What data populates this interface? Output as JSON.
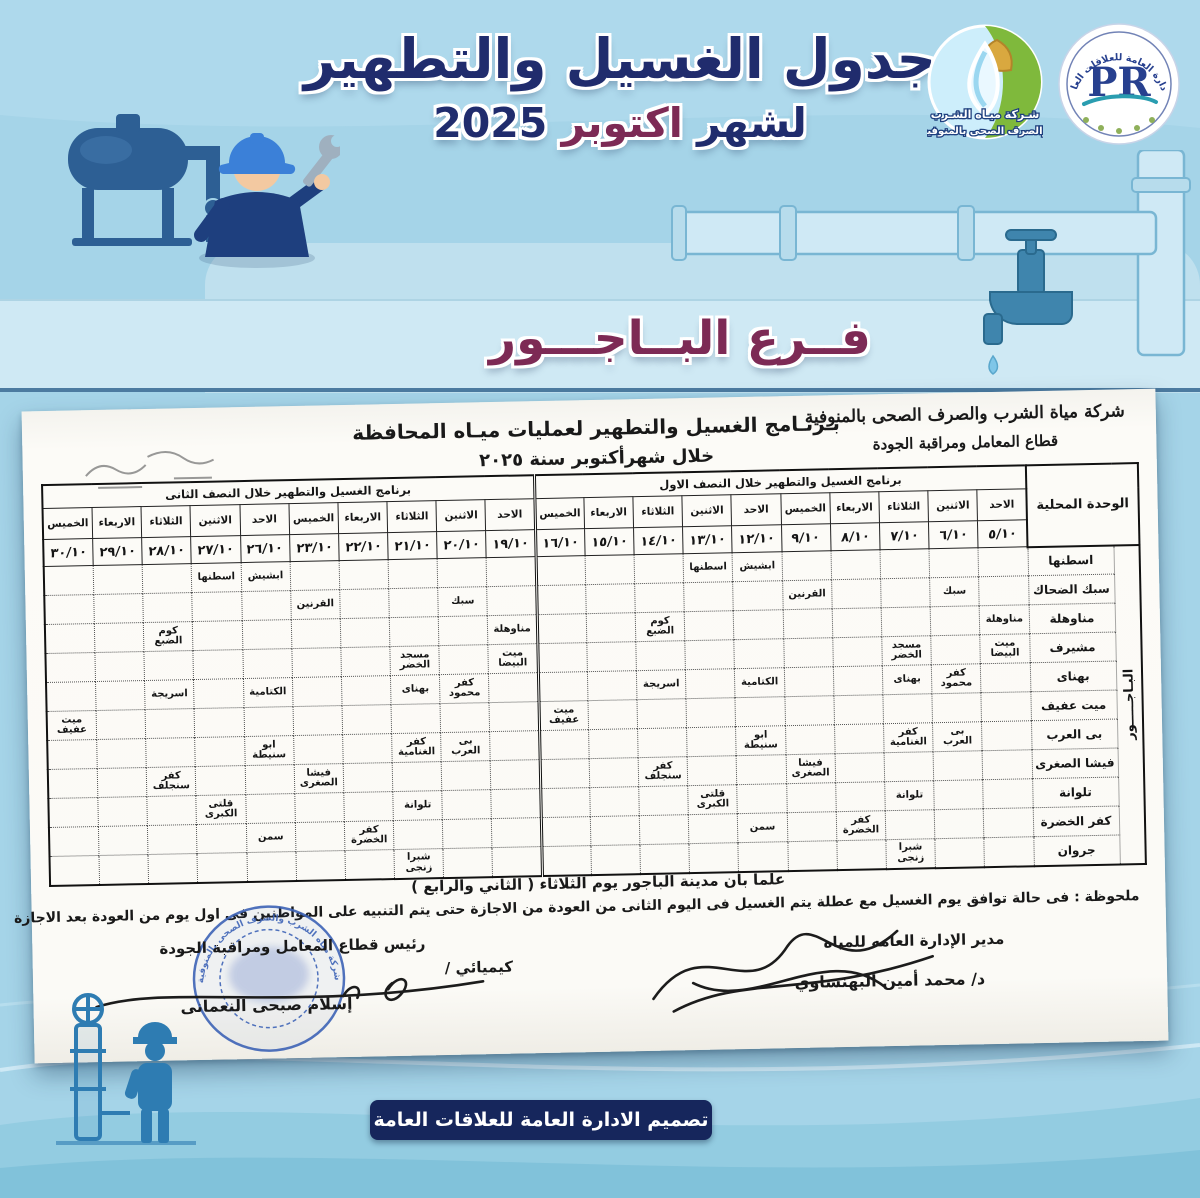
{
  "page": {
    "title_line1": "جدول الغسيل والتطهير",
    "title2_prefix": "لشهر ",
    "title2_month": "اكتوبر",
    "title2_year": " 2025",
    "branch_title": "فــرع البــاجـــور",
    "footer_banner": "تصميم الادارة العامة للعلاقات العامة"
  },
  "logos": {
    "company": {
      "line1": "شـركة ميـاه الشـرب",
      "line2": "والصرف الصحى بالمنوفية"
    },
    "pr": {
      "arc_text": "الادارة العامة للعلاقات العامة",
      "monogram": "PR"
    }
  },
  "document": {
    "company_line1": "شركة مياة الشرب والصرف الصحى بالمنوفية",
    "company_line2": "قطاع المعامل ومراقبة الجودة",
    "title_line1": "بـرنـامج الغسيل والتطهير لعمليات ميـاه المحافظة",
    "title_line2": "خلال شهرأكتوبر سنة ٢٠٢٥",
    "note_center": "علما بان مدينة الباجور يوم الثلاثاء ( الثاني والرابع )",
    "note_detail": "ملحوظة : فى حالة توافق يوم الغسيل مع عطلة يتم الغسيل فى اليوم الثانى من العودة من الاجازة حتى يتم التنبيه على المواطنين فى اول يوم من العودة بعد الاجازة",
    "sign_right_title": "مدير الإدارة العامه للمياه",
    "sign_right_name": "د/ محمد أمين البهنساوي",
    "sign_left_title": "رئيس قطاع المعامل ومراقبة الجودة",
    "sign_left_role": "كيميائي /",
    "sign_left_name": "إسلام صبحى النعمانى",
    "stamp_text": "شركة مياه الشرب والصرف الصحى بالمنوفية"
  },
  "table": {
    "unit_col_header": "الوحدة المحلية",
    "vertical_label": "البـاجـــــور",
    "half1_header": "برنامج الغسيل والتطهير خلال النصف الاول",
    "half2_header": "برنامج الغسيل والتطهير خلال النصف الثانى",
    "days": [
      "الاحد",
      "الاثنين",
      "الثلاثاء",
      "الاربعاء",
      "الخميس"
    ],
    "half1_dates": [
      "٥/١٠",
      "٦/١٠",
      "٧/١٠",
      "٨/١٠",
      "٩/١٠",
      "١٢/١٠",
      "١٣/١٠",
      "١٤/١٠",
      "١٥/١٠",
      "١٦/١٠"
    ],
    "half2_dates": [
      "١٩/١٠",
      "٢٠/١٠",
      "٢١/١٠",
      "٢٢/١٠",
      "٢٣/١٠",
      "٢٦/١٠",
      "٢٧/١٠",
      "٢٨/١٠",
      "٢٩/١٠",
      "٣٠/١٠"
    ],
    "rows": [
      {
        "unit": "اسطنها",
        "h1": [
          "",
          "",
          "",
          "",
          "",
          "ابشيش",
          "اسطنها",
          "",
          "",
          ""
        ],
        "h2": [
          "",
          "",
          "",
          "",
          "",
          "ابشيش",
          "اسطنها",
          "",
          "",
          ""
        ]
      },
      {
        "unit": "سبك الضحاك",
        "h1": [
          "",
          "سبك",
          "",
          "",
          "القرنين",
          "",
          "",
          "",
          "",
          ""
        ],
        "h2": [
          "",
          "سبك",
          "",
          "",
          "القرنين",
          "",
          "",
          "",
          "",
          ""
        ]
      },
      {
        "unit": "مناوهلة",
        "h1": [
          "مناوهلة",
          "",
          "",
          "",
          "",
          "",
          "",
          "كوم الضبع",
          "",
          ""
        ],
        "h2": [
          "مناوهلة",
          "",
          "",
          "",
          "",
          "",
          "",
          "كوم الضبع",
          "",
          ""
        ]
      },
      {
        "unit": "مشيرف",
        "h1": [
          "ميت البيضا",
          "",
          "مسجد الخضر",
          "",
          "",
          "",
          "",
          "",
          "",
          ""
        ],
        "h2": [
          "ميت البيضا",
          "",
          "مسجد الخضر",
          "",
          "",
          "",
          "",
          "",
          "",
          ""
        ]
      },
      {
        "unit": "بهناى",
        "h1": [
          "",
          "كفر محمود",
          "بهناى",
          "",
          "",
          "الكتامية",
          "",
          "اسريجة",
          "",
          ""
        ],
        "h2": [
          "",
          "كفر محمود",
          "بهناى",
          "",
          "",
          "الكتامية",
          "",
          "اسريجة",
          "",
          ""
        ]
      },
      {
        "unit": "ميت عفيف",
        "h1": [
          "",
          "",
          "",
          "",
          "",
          "",
          "",
          "",
          "",
          "ميت عفيف"
        ],
        "h2": [
          "",
          "",
          "",
          "",
          "",
          "",
          "",
          "",
          "",
          "ميت عفيف"
        ]
      },
      {
        "unit": "بى العرب",
        "h1": [
          "",
          "بى العرب",
          "كفر الغنامية",
          "",
          "",
          "ابو سنيطة",
          "",
          "",
          "",
          ""
        ],
        "h2": [
          "",
          "بى العرب",
          "كفر الغنامية",
          "",
          "",
          "ابو سنيطة",
          "",
          "",
          "",
          ""
        ]
      },
      {
        "unit": "فيشا الصغرى",
        "h1": [
          "",
          "",
          "",
          "",
          "فيشا الصغرى",
          "",
          "",
          "كفر سنجلف",
          "",
          ""
        ],
        "h2": [
          "",
          "",
          "",
          "",
          "فيشا الصغرى",
          "",
          "",
          "كفر سنجلف",
          "",
          ""
        ]
      },
      {
        "unit": "تلوانة",
        "h1": [
          "",
          "",
          "تلوانة",
          "",
          "",
          "",
          "قلتى الكبرى",
          "",
          "",
          ""
        ],
        "h2": [
          "",
          "",
          "تلوانة",
          "",
          "",
          "",
          "قلتى الكبرى",
          "",
          "",
          ""
        ]
      },
      {
        "unit": "كفر الخضرة",
        "h1": [
          "",
          "",
          "",
          "كفر الخضرة",
          "",
          "سمن",
          "",
          "",
          "",
          ""
        ],
        "h2": [
          "",
          "",
          "",
          "كفر الخضرة",
          "",
          "سمن",
          "",
          "",
          "",
          ""
        ]
      },
      {
        "unit": "جروان",
        "h1": [
          "",
          "",
          "شبرا زنجى",
          "",
          "",
          "",
          "",
          "",
          "",
          ""
        ],
        "h2": [
          "",
          "",
          "شبرا زنجى",
          "",
          "",
          "",
          "",
          "",
          "",
          ""
        ]
      }
    ]
  },
  "colors": {
    "background": "#a5d4e8",
    "navy": "#202c6d",
    "maroon": "#7d2a55",
    "banner_navy": "#16265c",
    "stamp_blue": "#3d63b6",
    "paper": "#fbfaf6"
  }
}
